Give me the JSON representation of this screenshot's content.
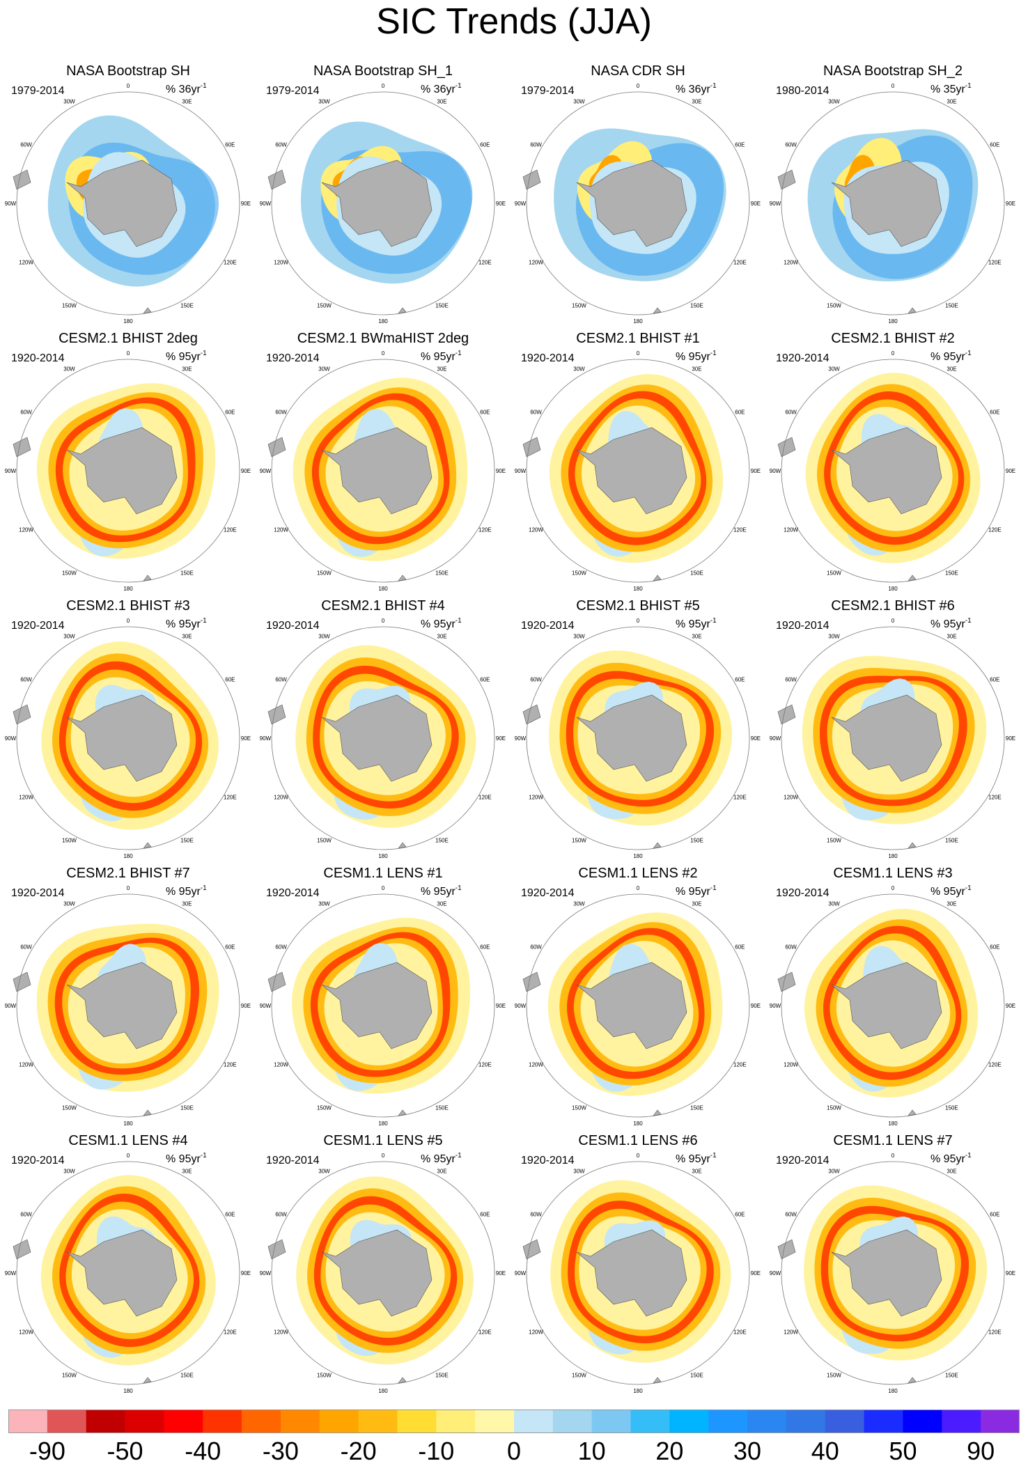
{
  "title": "SIC Trends (JJA)",
  "lon_labels": [
    "0",
    "30E",
    "60E",
    "90E",
    "120E",
    "150E",
    "180",
    "150W",
    "120W",
    "90W",
    "60W",
    "30W"
  ],
  "panels": [
    {
      "title": "NASA Bootstrap SH",
      "period": "1979-2014",
      "units": "% 36yr",
      "pattern": "obs"
    },
    {
      "title": "NASA Bootstrap SH_1",
      "period": "1979-2014",
      "units": "% 36yr",
      "pattern": "obs"
    },
    {
      "title": "NASA CDR SH",
      "period": "1979-2014",
      "units": "% 36yr",
      "pattern": "obs"
    },
    {
      "title": "NASA Bootstrap SH_2",
      "period": "1980-2014",
      "units": "% 35yr",
      "pattern": "obs"
    },
    {
      "title": "CESM2.1 BHIST 2deg",
      "period": "1920-2014",
      "units": "% 95yr",
      "pattern": "model"
    },
    {
      "title": "CESM2.1 BWmaHIST 2deg",
      "period": "1920-2014",
      "units": "% 95yr",
      "pattern": "model"
    },
    {
      "title": "CESM2.1 BHIST #1",
      "period": "1920-2014",
      "units": "% 95yr",
      "pattern": "model"
    },
    {
      "title": "CESM2.1 BHIST #2",
      "period": "1920-2014",
      "units": "% 95yr",
      "pattern": "model"
    },
    {
      "title": "CESM2.1 BHIST #3",
      "period": "1920-2014",
      "units": "% 95yr",
      "pattern": "model"
    },
    {
      "title": "CESM2.1 BHIST #4",
      "period": "1920-2014",
      "units": "% 95yr",
      "pattern": "model"
    },
    {
      "title": "CESM2.1 BHIST #5",
      "period": "1920-2014",
      "units": "% 95yr",
      "pattern": "model"
    },
    {
      "title": "CESM2.1 BHIST #6",
      "period": "1920-2014",
      "units": "% 95yr",
      "pattern": "model"
    },
    {
      "title": "CESM2.1 BHIST #7",
      "period": "1920-2014",
      "units": "% 95yr",
      "pattern": "model"
    },
    {
      "title": "CESM1.1 LENS #1",
      "period": "1920-2014",
      "units": "% 95yr",
      "pattern": "model"
    },
    {
      "title": "CESM1.1 LENS #2",
      "period": "1920-2014",
      "units": "% 95yr",
      "pattern": "model"
    },
    {
      "title": "CESM1.1 LENS #3",
      "period": "1920-2014",
      "units": "% 95yr",
      "pattern": "model"
    },
    {
      "title": "CESM1.1 LENS #4",
      "period": "1920-2014",
      "units": "% 95yr",
      "pattern": "model"
    },
    {
      "title": "CESM1.1 LENS #5",
      "period": "1920-2014",
      "units": "% 95yr",
      "pattern": "model"
    },
    {
      "title": "CESM1.1 LENS #6",
      "period": "1920-2014",
      "units": "% 95yr",
      "pattern": "model"
    },
    {
      "title": "CESM1.1 LENS #7",
      "period": "1920-2014",
      "units": "% 95yr",
      "pattern": "model"
    }
  ],
  "colorbar": {
    "colors": [
      "#fbb4b9",
      "#e05656",
      "#c00000",
      "#dd0000",
      "#ff0000",
      "#ff3300",
      "#ff6600",
      "#ff8800",
      "#ffa500",
      "#ffbb11",
      "#ffdd33",
      "#ffee77",
      "#fff8a8",
      "#c4e6f6",
      "#a4d6f0",
      "#7cc8f2",
      "#34bdf6",
      "#00b4ff",
      "#1e96ff",
      "#2a86f0",
      "#3277e6",
      "#3a5ee0",
      "#1a2cff",
      "#0000ff",
      "#4a1cff",
      "#8a2be2"
    ],
    "labels": [
      "-90",
      "-50",
      "-40",
      "-30",
      "-20",
      "-10",
      "0",
      "10",
      "20",
      "30",
      "40",
      "50",
      "90"
    ]
  }
}
